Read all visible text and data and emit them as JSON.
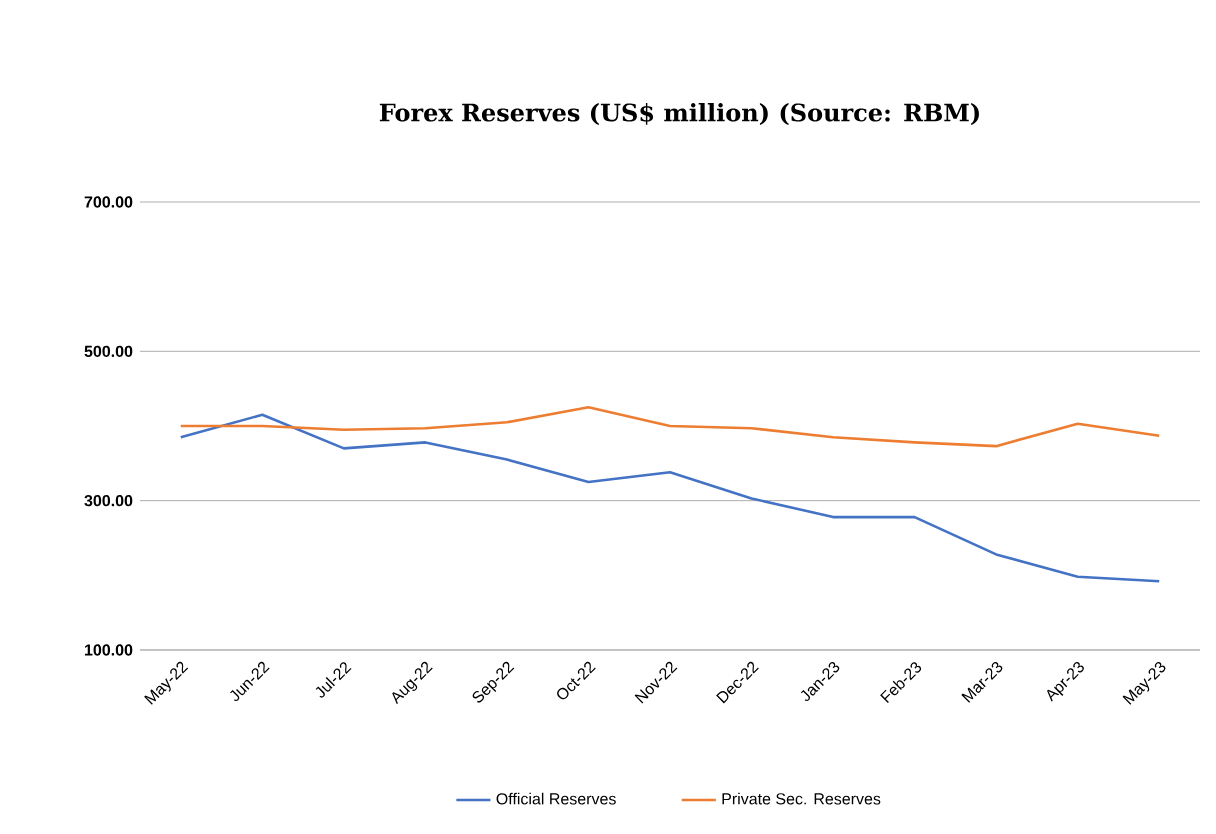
{
  "chart_data": {
    "type": "line",
    "title": "Forex Reserves (US$ million) (Source: RBM)",
    "categories": [
      "May-22",
      "Jun-22",
      "Jul-22",
      "Aug-22",
      "Sep-22",
      "Oct-22",
      "Nov-22",
      "Dec-22",
      "Jan-23",
      "Feb-23",
      "Mar-23",
      "Apr-23",
      "May-23"
    ],
    "series": [
      {
        "name": "Official Reserves",
        "color": "#4472c4",
        "values": [
          385,
          415,
          370,
          378,
          355,
          325,
          338,
          303,
          278,
          278,
          228,
          198,
          192
        ]
      },
      {
        "name": "Private Sec. Reserves",
        "color": "#ed7d31",
        "values": [
          400,
          400,
          395,
          397,
          405,
          425,
          400,
          397,
          385,
          378,
          373,
          403,
          387
        ]
      }
    ],
    "ylim": [
      100,
      700
    ],
    "yticks": [
      {
        "value": 100,
        "label": "100.00"
      },
      {
        "value": 300,
        "label": "300.00"
      },
      {
        "value": 500,
        "label": "500.00"
      },
      {
        "value": 700,
        "label": "700.00"
      }
    ],
    "grid": "y",
    "legend": "bottom",
    "marker": "none",
    "line_style": "solid"
  }
}
